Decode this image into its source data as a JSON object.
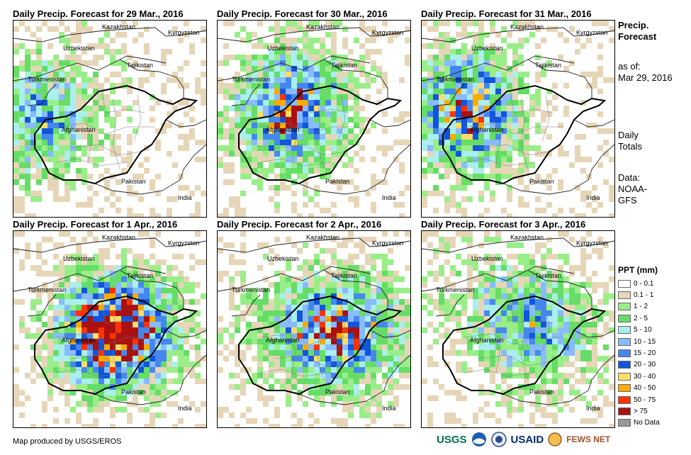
{
  "panels": [
    {
      "title": "Daily Precip. Forecast for 29 Mar., 2016",
      "seed": 11,
      "bands": [
        [
          0.12,
          0.3
        ],
        [
          0.8,
          0.1
        ]
      ]
    },
    {
      "title": "Daily Precip. Forecast for 30 Mar., 2016",
      "seed": 23,
      "bands": [
        [
          0.45,
          0.4
        ],
        [
          0.8,
          0.35
        ]
      ]
    },
    {
      "title": "Daily Precip. Forecast for 31 Mar., 2016",
      "seed": 37,
      "bands": [
        [
          0.35,
          0.25
        ],
        [
          0.85,
          0.2
        ]
      ]
    },
    {
      "title": "Daily Precip. Forecast for 1 Apr., 2016",
      "seed": 41,
      "bands": [
        [
          0.9,
          0.45
        ],
        [
          0.7,
          0.6
        ]
      ]
    },
    {
      "title": "Daily Precip. Forecast for 2 Apr., 2016",
      "seed": 53,
      "bands": [
        [
          0.55,
          0.4
        ],
        [
          0.9,
          0.7
        ]
      ]
    },
    {
      "title": "Daily Precip. Forecast for 3 Apr., 2016",
      "seed": 67,
      "bands": [
        [
          0.3,
          0.3
        ],
        [
          0.8,
          0.6
        ]
      ]
    }
  ],
  "country_labels": {
    "kazakhstan": "Kazakhstan",
    "kyrgyzstan": "Kyrgyzstan",
    "uzbekistan": "Uzbekistan",
    "tajikistan": "Tajikistan",
    "turkmenistan": "Turkmenistan",
    "afghanistan": "Afghanistan",
    "pakistan": "Pakistan",
    "india": "India"
  },
  "side": {
    "title_line1": "Precip.",
    "title_line2": "Forecast",
    "asof_line1": "as of:",
    "asof_line2": "Mar 29, 2016",
    "totals_line1": "Daily",
    "totals_line2": "Totals",
    "data_line1": "Data:",
    "data_line2": "NOAA-",
    "data_line3": "GFS"
  },
  "legend": {
    "title": "PPT (mm)",
    "items": [
      {
        "label": "0 - 0.1",
        "color": "#ffffff"
      },
      {
        "label": "0.1 - 1",
        "color": "#e6d6b8"
      },
      {
        "label": "1 - 2",
        "color": "#99ee88"
      },
      {
        "label": "2 - 5",
        "color": "#66dd66"
      },
      {
        "label": "5 - 10",
        "color": "#aaeeee"
      },
      {
        "label": "10 - 15",
        "color": "#88bbff"
      },
      {
        "label": "15 - 20",
        "color": "#4488ee"
      },
      {
        "label": "20 - 30",
        "color": "#1155dd"
      },
      {
        "label": "30 - 40",
        "color": "#ffdd66"
      },
      {
        "label": "40 - 50",
        "color": "#ffaa00"
      },
      {
        "label": "50 - 75",
        "color": "#ff3300"
      },
      {
        "label": "> 75",
        "color": "#aa1111"
      },
      {
        "label": "No Data",
        "color": "#999999"
      }
    ]
  },
  "credit": "Map produced by USGS/EROS",
  "logos": {
    "usgs": "USGS",
    "usaid": "USAID",
    "fewsnet": "FEWS NET"
  }
}
